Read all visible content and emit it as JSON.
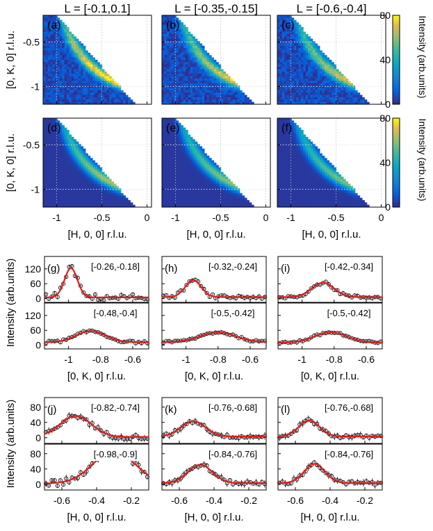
{
  "chart_data": {
    "type": "heatmap",
    "column_titles": [
      "L = [-0.1,0.1]",
      "L = [-0.35,-0.15]",
      "L = [-0.6,-0.4]"
    ],
    "heatmaps": {
      "ylabel": "[0, K, 0] r.l.u.",
      "xlabel": "[H, 0, 0] r.l.u.",
      "xlim": [
        -1.15,
        0.05
      ],
      "ylim": [
        -1.2,
        -0.2
      ],
      "xticks": [
        -1,
        -0.5,
        0
      ],
      "xtick_labels": [
        "-1",
        "-0.5",
        "0"
      ],
      "yticks": [
        -0.5,
        -1
      ],
      "ytick_labels": [
        "-0.5",
        "-1"
      ],
      "colorbar": {
        "label": "Intensity (arb.units)",
        "ticks": [
          0,
          40,
          80
        ],
        "tick_labels": [
          "0",
          "40",
          "80"
        ],
        "range": [
          0,
          80
        ],
        "colormap": "parula"
      },
      "rows": [
        {
          "kind": "data",
          "panels": [
            "(a)",
            "(b)",
            "(c)"
          ],
          "ring_peak": [
            75,
            65,
            62
          ]
        },
        {
          "kind": "model",
          "panels": [
            "(d)",
            "(e)",
            "(f)"
          ],
          "ring_peak": [
            62,
            58,
            55
          ]
        }
      ]
    },
    "k_cuts": {
      "ylabel": "Intensity (arb.units)",
      "xlabel": "[0, K, 0] r.l.u.",
      "xlim": [
        -1.15,
        -0.5
      ],
      "ylim": [
        -15,
        170
      ],
      "xticks": [
        -1,
        -0.8,
        -0.6
      ],
      "xtick_labels": [
        "-1",
        "-0.8",
        "-0.6"
      ],
      "yticks": [
        0,
        60,
        120
      ],
      "ytick_labels": [
        "0",
        "60",
        "120"
      ],
      "panels": [
        {
          "label": "(g)",
          "top": {
            "range": "[-0.26,-0.18]",
            "center": -0.985,
            "width": 0.04,
            "amp": 118,
            "base": 5
          },
          "bottom": {
            "range": "[-0.48,-0.4]",
            "center": -0.86,
            "width": 0.09,
            "amp": 45,
            "base": 12
          }
        },
        {
          "label": "(h)",
          "top": {
            "range": "[-0.32,-0.24]",
            "center": -0.955,
            "width": 0.05,
            "amp": 68,
            "base": 6
          },
          "bottom": {
            "range": "[-0.5,-0.42]",
            "center": -0.8,
            "width": 0.11,
            "amp": 40,
            "base": 12
          }
        },
        {
          "label": "(i)",
          "top": {
            "range": "[-0.42,-0.34]",
            "center": -0.87,
            "width": 0.07,
            "amp": 58,
            "base": 6
          },
          "bottom": {
            "range": "[-0.5,-0.42]",
            "center": -0.82,
            "width": 0.1,
            "amp": 42,
            "base": 10
          }
        }
      ]
    },
    "h_cuts": {
      "ylabel": "Intensity (arb.units)",
      "xlabel": "[H, 0, 0] r.l.u.",
      "xlim": [
        -0.7,
        -0.1
      ],
      "ylim": [
        -15,
        105
      ],
      "xticks": [
        -0.6,
        -0.4,
        -0.2
      ],
      "xtick_labels": [
        "-0.6",
        "-0.4",
        "-0.2"
      ],
      "yticks": [
        0,
        40,
        80
      ],
      "ytick_labels": [
        "0",
        "40",
        "80"
      ],
      "panels": [
        {
          "label": "(j)",
          "top": {
            "range": "[-0.82,-0.74]",
            "center": -0.52,
            "width": 0.09,
            "amp": 55,
            "base": 2
          },
          "bottom": {
            "range": "[-0.98,-0.9]",
            "center": -0.3,
            "width": 0.12,
            "amp": 85,
            "base": 2
          }
        },
        {
          "label": "(k)",
          "top": {
            "range": "[-0.76,-0.68]",
            "center": -0.52,
            "width": 0.07,
            "amp": 40,
            "base": 3
          },
          "bottom": {
            "range": "[-0.84,-0.76]",
            "center": -0.48,
            "width": 0.07,
            "amp": 48,
            "base": 3
          }
        },
        {
          "label": "(l)",
          "top": {
            "range": "[-0.76,-0.68]",
            "center": -0.52,
            "width": 0.06,
            "amp": 42,
            "base": 3
          },
          "bottom": {
            "range": "[-0.84,-0.76]",
            "center": -0.49,
            "width": 0.06,
            "amp": 50,
            "base": 3
          }
        }
      ]
    }
  }
}
